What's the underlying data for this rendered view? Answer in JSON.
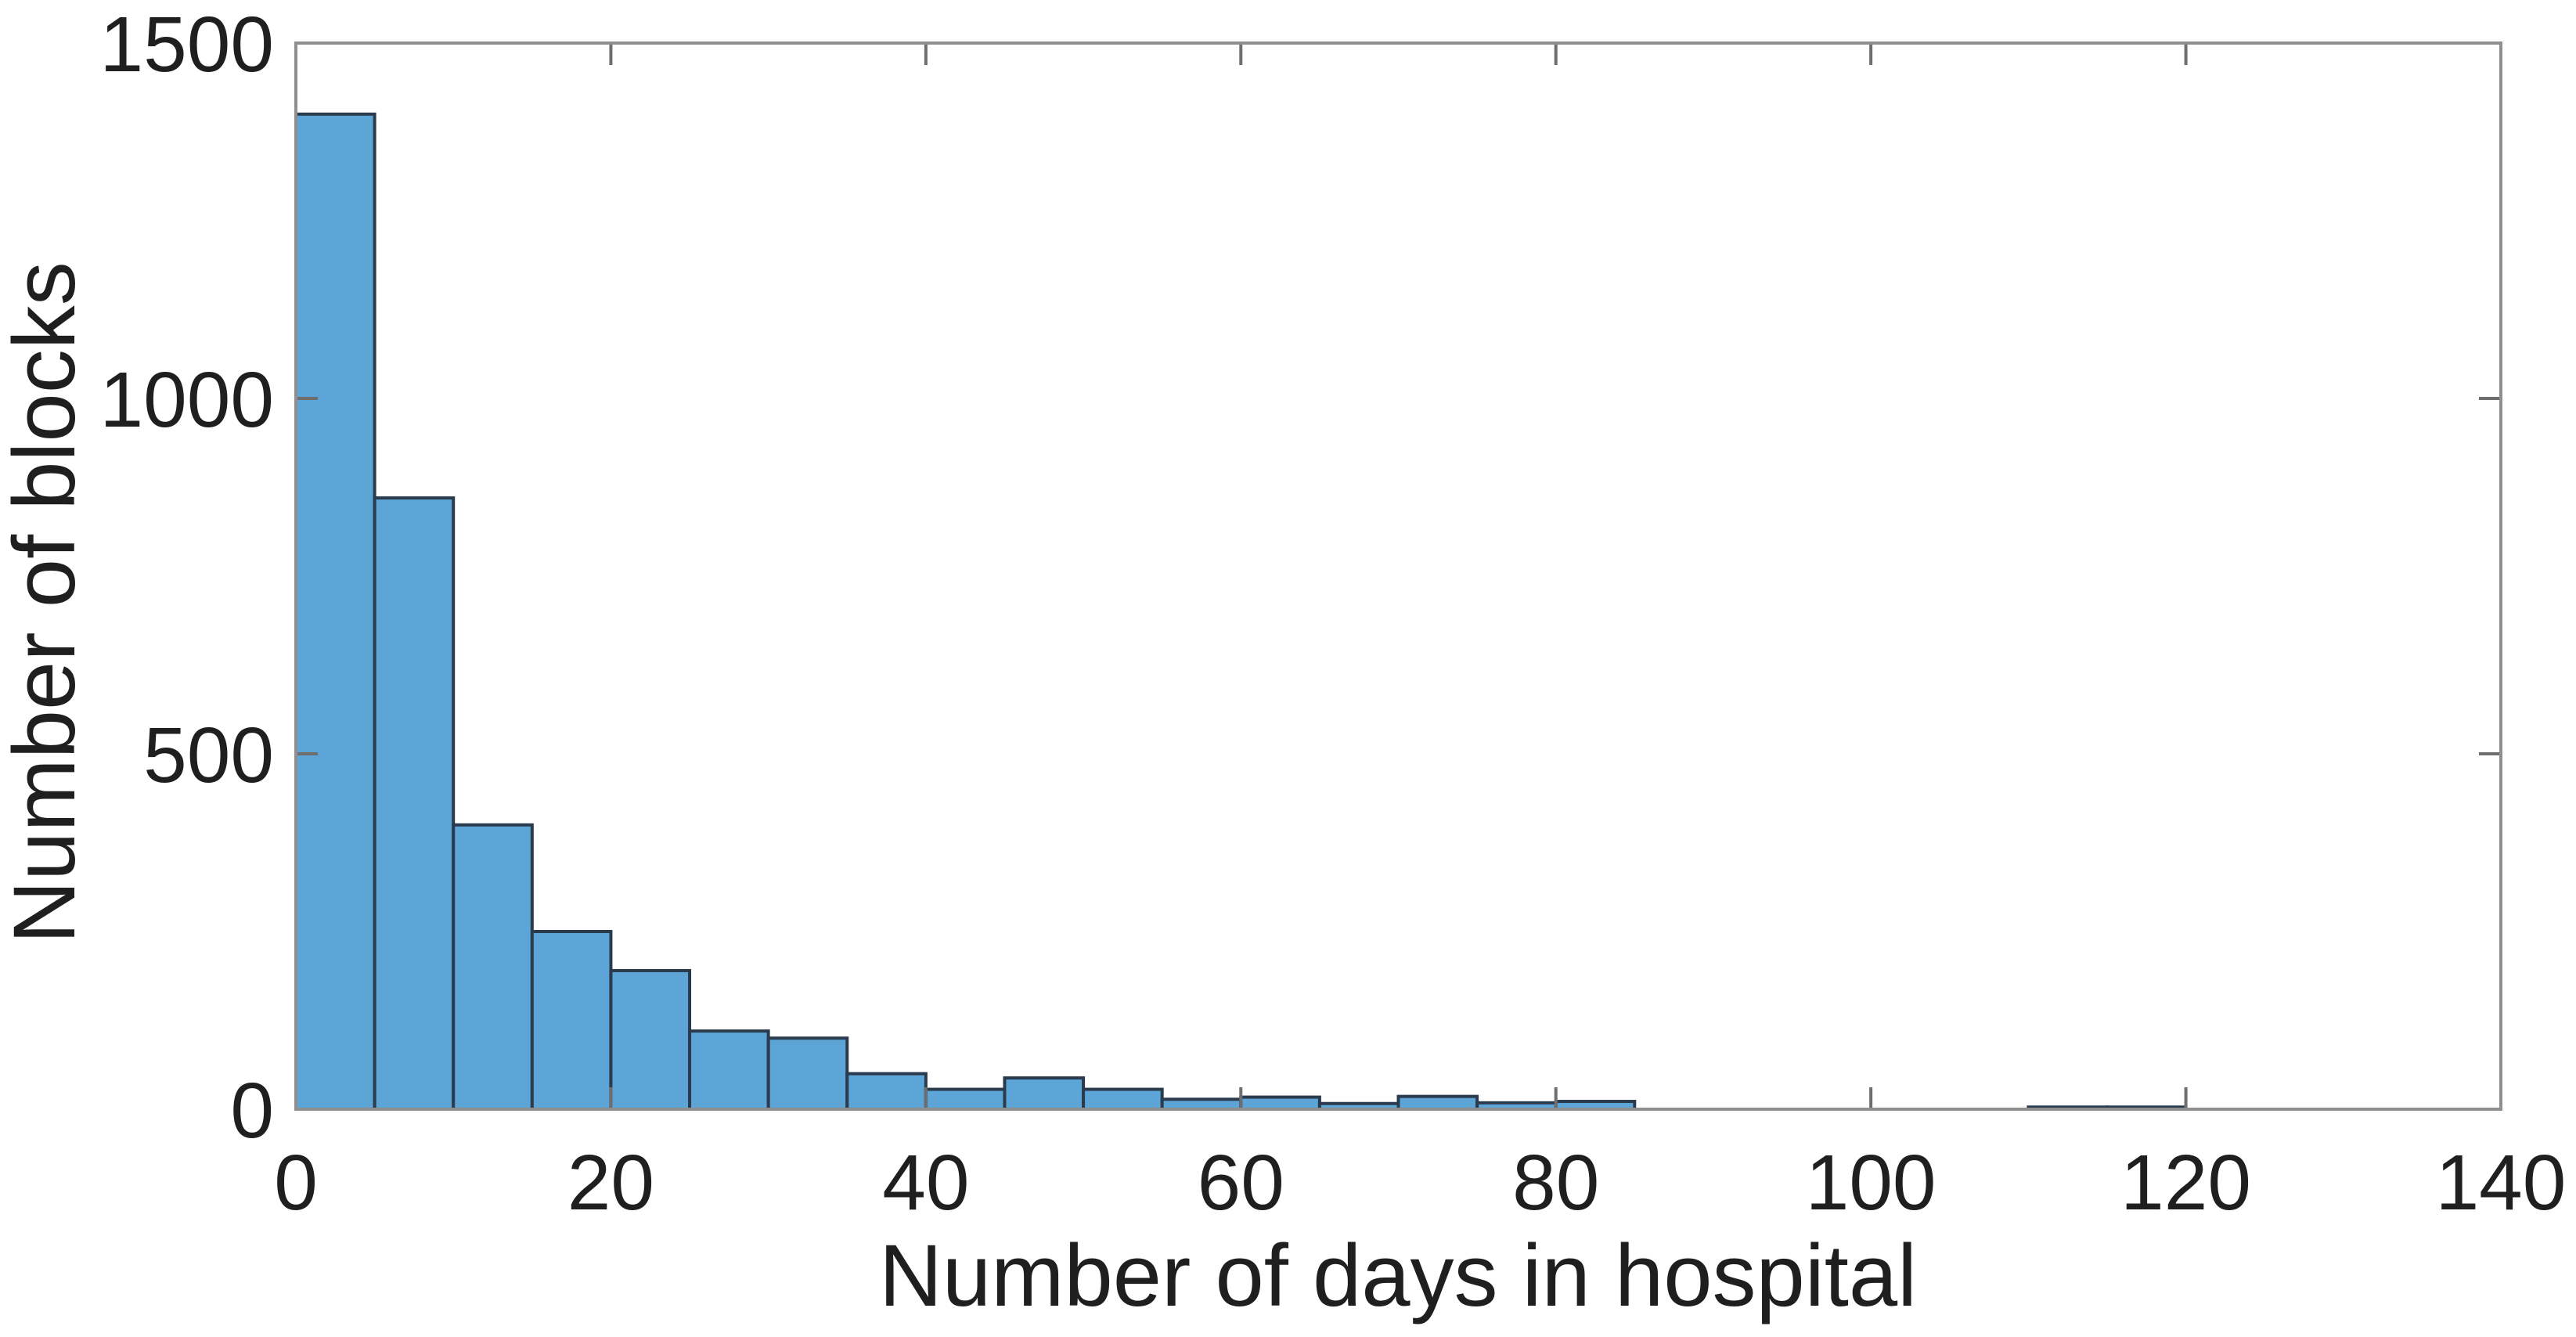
{
  "figure": {
    "background": "#ffffff"
  },
  "chart_data": {
    "type": "bar",
    "subtype": "histogram",
    "title": "",
    "xlabel": "Number of days in hospital",
    "ylabel": "Number of blocks",
    "xlim": [
      0,
      140
    ],
    "ylim": [
      0,
      1500
    ],
    "x_ticks": [
      "0",
      "20",
      "40",
      "60",
      "80",
      "100",
      "120",
      "140"
    ],
    "x_tick_values": [
      0,
      20,
      40,
      60,
      80,
      100,
      120,
      140
    ],
    "y_ticks": [
      "0",
      "500",
      "1000",
      "1500"
    ],
    "y_tick_values": [
      0,
      500,
      1000,
      1500
    ],
    "bin_width": 5,
    "bins": [
      {
        "range": [
          0,
          5
        ],
        "count": 1400
      },
      {
        "range": [
          5,
          10
        ],
        "count": 860
      },
      {
        "range": [
          10,
          15
        ],
        "count": 400
      },
      {
        "range": [
          15,
          20
        ],
        "count": 250
      },
      {
        "range": [
          20,
          25
        ],
        "count": 195
      },
      {
        "range": [
          25,
          30
        ],
        "count": 110
      },
      {
        "range": [
          30,
          35
        ],
        "count": 100
      },
      {
        "range": [
          35,
          40
        ],
        "count": 50
      },
      {
        "range": [
          40,
          45
        ],
        "count": 28
      },
      {
        "range": [
          45,
          50
        ],
        "count": 44
      },
      {
        "range": [
          50,
          55
        ],
        "count": 28
      },
      {
        "range": [
          55,
          60
        ],
        "count": 14
      },
      {
        "range": [
          60,
          65
        ],
        "count": 17
      },
      {
        "range": [
          65,
          70
        ],
        "count": 8
      },
      {
        "range": [
          70,
          75
        ],
        "count": 18
      },
      {
        "range": [
          75,
          80
        ],
        "count": 9
      },
      {
        "range": [
          80,
          85
        ],
        "count": 11
      },
      {
        "range": [
          110,
          115
        ],
        "count": 3
      },
      {
        "range": [
          115,
          120
        ],
        "count": 3
      }
    ],
    "grid": "off",
    "legend": "none",
    "tick_direction": "in",
    "box": "on",
    "colors": {
      "bar_fill": "#5CA5D6",
      "bar_edge": "#2B3B4E",
      "axis_box": "#8F8F8F",
      "tick_mark": "#6E6E6E",
      "text": "#1F1F1F"
    }
  }
}
